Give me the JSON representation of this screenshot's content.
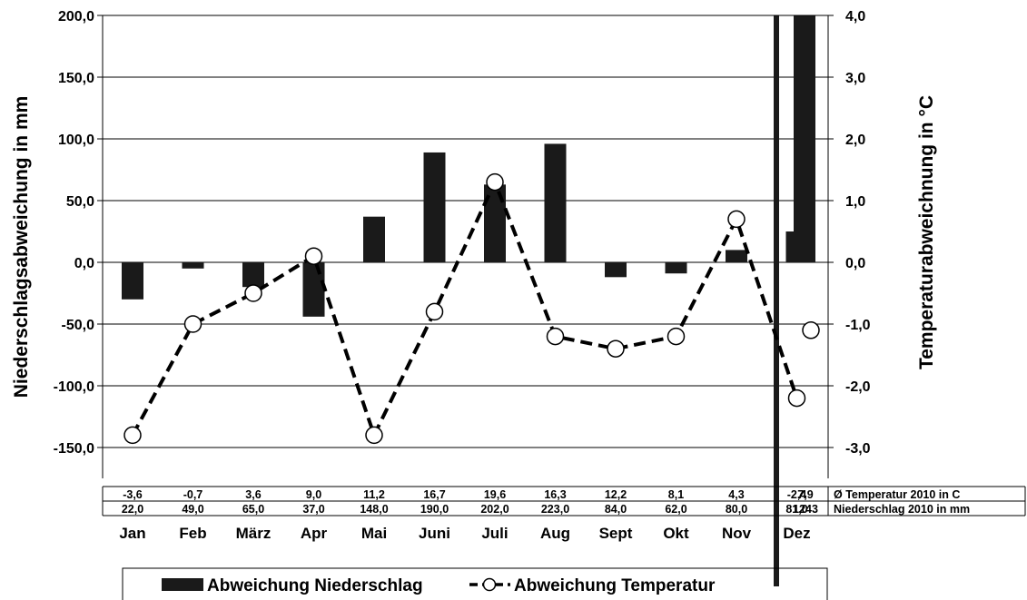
{
  "chart_data": {
    "type": "bar",
    "categories": [
      "Jan",
      "Feb",
      "März",
      "Apr",
      "Mai",
      "Juni",
      "Juli",
      "Aug",
      "Sept",
      "Okt",
      "Nov",
      "Dez"
    ],
    "series": [
      {
        "name": "Abweichung Niederschlag",
        "type": "bar",
        "axis": "left",
        "values": [
          -30,
          -5,
          -20,
          -44,
          37,
          89,
          63,
          96,
          -12,
          -9,
          10,
          25
        ],
        "annual": 200,
        "color": "#1a1a1a"
      },
      {
        "name": "Abweichung Temperatur",
        "type": "line",
        "axis": "right",
        "values": [
          -2.8,
          -1.0,
          -0.5,
          0.1,
          -2.8,
          -0.8,
          1.3,
          -1.2,
          -1.4,
          -1.2,
          0.7,
          -2.2
        ],
        "annual": -1.1,
        "color": "#000000"
      }
    ],
    "ylabel": "Niederschlagsabweichung in mm",
    "ylabel_right": "Temperaturabweichnung in °C",
    "ylim": [
      -175,
      200
    ],
    "ylim_right": [
      -3.5,
      4.0
    ],
    "yticks": [
      "200,0",
      "150,0",
      "100,0",
      "50,0",
      "0,0",
      "-50,0",
      "-100,0",
      "-150,0"
    ],
    "yticks_right": [
      "4,0",
      "3,0",
      "2,0",
      "1,0",
      "0,0",
      "-1,0",
      "-2,0",
      "-3,0"
    ],
    "grid": true,
    "legend_position": "bottom",
    "table": {
      "temperature_label": "Ø Temperatur 2010 in  C",
      "temperature": [
        "-3,6",
        "-0,7",
        "3,6",
        "9,0",
        "11,2",
        "16,7",
        "19,6",
        "16,3",
        "12,2",
        "8,1",
        "4,3",
        "-2,4"
      ],
      "temperature_annual": "7,9",
      "precipitation_label": "Niederschlag 2010 in mm",
      "precipitation": [
        "22,0",
        "49,0",
        "65,0",
        "37,0",
        "148,0",
        "190,0",
        "202,0",
        "223,0",
        "84,0",
        "62,0",
        "80,0",
        "81,0"
      ],
      "precipitation_annual": "1243"
    }
  }
}
